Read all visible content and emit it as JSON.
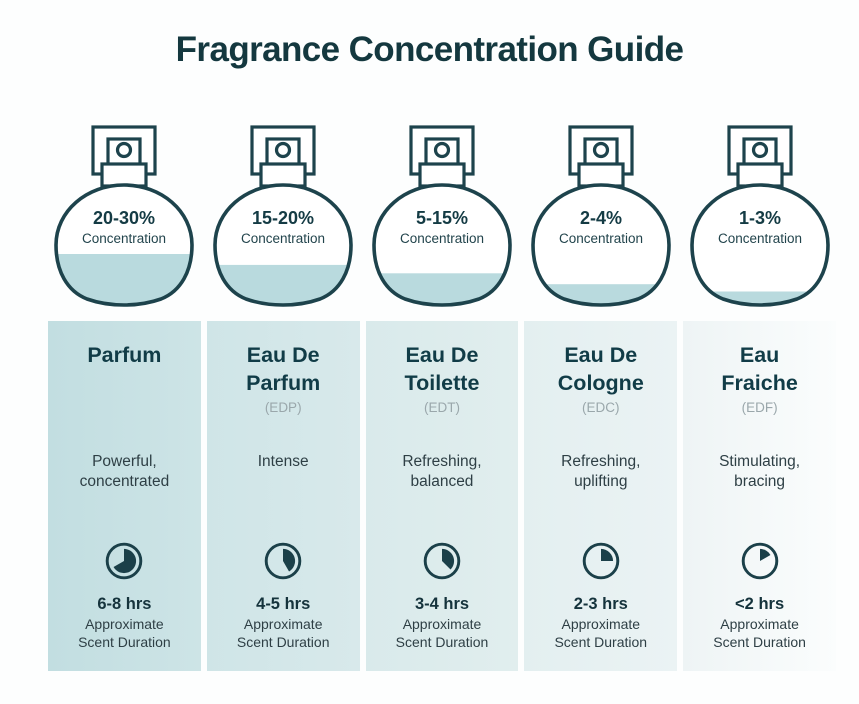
{
  "title": "Fragrance Concentration Guide",
  "colors": {
    "title_text": "#14383f",
    "bottle_outline": "#1d434c",
    "bottle_liquid": "#b9dade",
    "name_text": "#113c47",
    "body_text": "#2e3f45",
    "abbr_text": "#9aa7ab",
    "column_bg_darkest": "#c2dee1",
    "column_bg_lightest": "#fbfdfd"
  },
  "bottles": [
    {
      "range": "20-30%",
      "label": "Concentration",
      "fill_percent": 43
    },
    {
      "range": "15-20%",
      "label": "Concentration",
      "fill_percent": 34
    },
    {
      "range": "5-15%",
      "label": "Concentration",
      "fill_percent": 27
    },
    {
      "range": "2-4%",
      "label": "Concentration",
      "fill_percent": 18
    },
    {
      "range": "1-3%",
      "label": "Concentration",
      "fill_percent": 12
    }
  ],
  "columns": [
    {
      "name": "Parfum",
      "abbr": "",
      "description": "Powerful, concentrated",
      "duration": "6-8 hrs",
      "duration_caption": "Approximate Scent Duration",
      "clock_degrees": 240
    },
    {
      "name": "Eau De Parfum",
      "abbr": "(EDP)",
      "description": "Intense",
      "duration": "4-5 hrs",
      "duration_caption": "Approximate Scent Duration",
      "clock_degrees": 150
    },
    {
      "name": "Eau De Toilette",
      "abbr": "(EDT)",
      "description": "Refreshing, balanced",
      "duration": "3-4 hrs",
      "duration_caption": "Approximate Scent Duration",
      "clock_degrees": 135
    },
    {
      "name": "Eau De Cologne",
      "abbr": "(EDC)",
      "description": "Refreshing, uplifting",
      "duration": "2-3 hrs",
      "duration_caption": "Approximate Scent Duration",
      "clock_degrees": 90
    },
    {
      "name": "Eau Fraiche",
      "abbr": "(EDF)",
      "description": "Stimulating, bracing",
      "duration": "<2 hrs",
      "duration_caption": "Approximate Scent Duration",
      "clock_degrees": 60
    }
  ]
}
